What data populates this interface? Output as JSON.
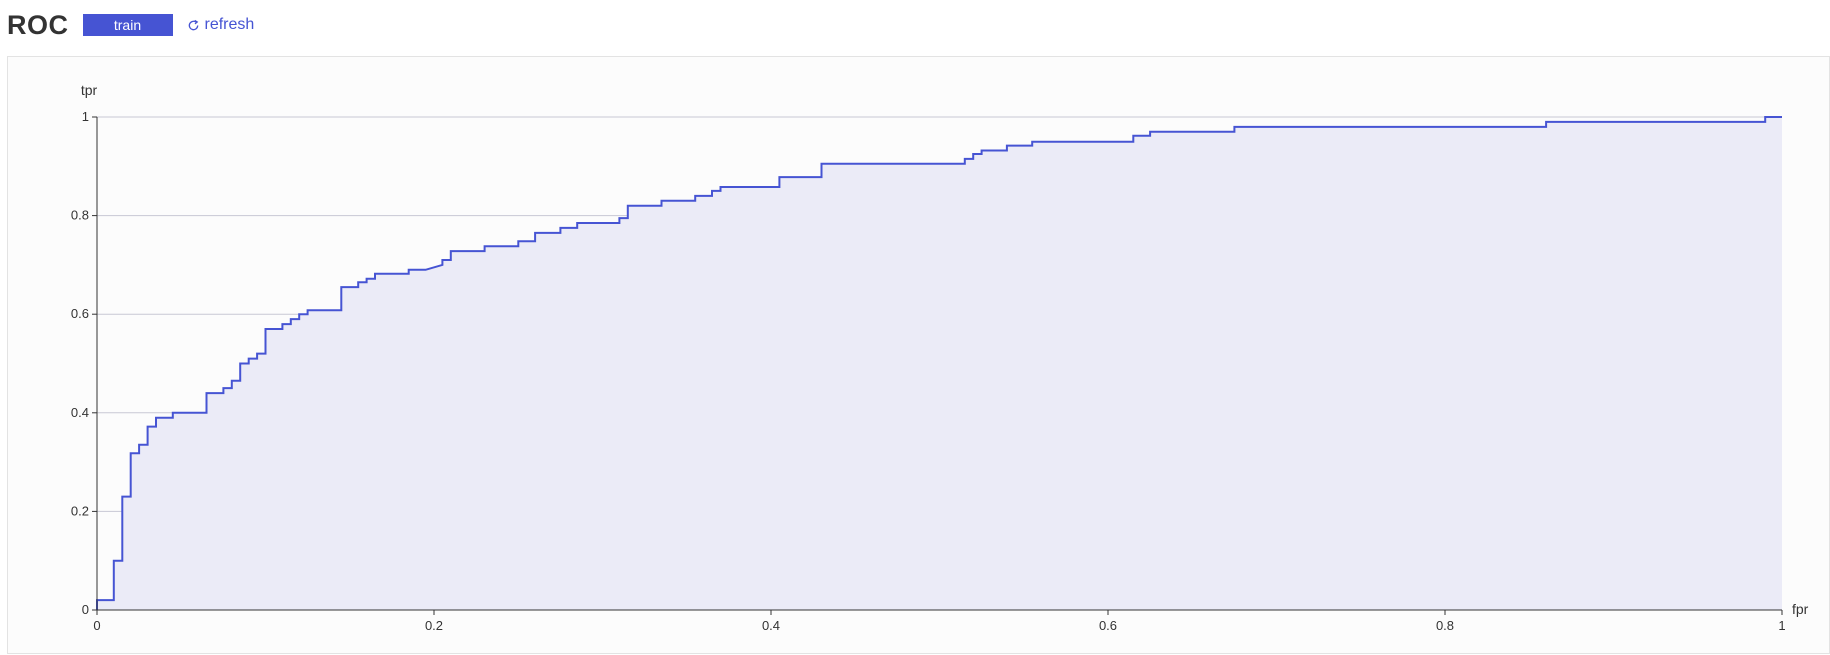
{
  "header": {
    "title": "ROC",
    "tab_label": "train",
    "refresh_label": "refresh"
  },
  "colors": {
    "accent": "#4654d3",
    "area_fill": "#ebebf7",
    "grid": "#c8c8d4"
  },
  "chart_data": {
    "type": "area",
    "title": "ROC",
    "xlabel": "fpr",
    "ylabel": "tpr",
    "xlim": [
      0,
      1
    ],
    "ylim": [
      0,
      1
    ],
    "x_ticks": [
      "0",
      "0.2",
      "0.4",
      "0.6",
      "0.8",
      "1"
    ],
    "y_ticks": [
      "0",
      "0.2",
      "0.4",
      "0.6",
      "0.8",
      "1"
    ],
    "grid": "horizontal",
    "step": true,
    "series": [
      {
        "points": [
          [
            0,
            0
          ],
          [
            0,
            0.02
          ],
          [
            0.01,
            0.02
          ],
          [
            0.01,
            0.1
          ],
          [
            0.015,
            0.1
          ],
          [
            0.015,
            0.23
          ],
          [
            0.02,
            0.23
          ],
          [
            0.02,
            0.318
          ],
          [
            0.025,
            0.318
          ],
          [
            0.025,
            0.335
          ],
          [
            0.03,
            0.335
          ],
          [
            0.03,
            0.372
          ],
          [
            0.035,
            0.372
          ],
          [
            0.035,
            0.39
          ],
          [
            0.045,
            0.39
          ],
          [
            0.045,
            0.4
          ],
          [
            0.065,
            0.4
          ],
          [
            0.065,
            0.44
          ],
          [
            0.075,
            0.44
          ],
          [
            0.075,
            0.45
          ],
          [
            0.08,
            0.45
          ],
          [
            0.08,
            0.465
          ],
          [
            0.085,
            0.465
          ],
          [
            0.085,
            0.5
          ],
          [
            0.09,
            0.5
          ],
          [
            0.09,
            0.51
          ],
          [
            0.095,
            0.51
          ],
          [
            0.095,
            0.52
          ],
          [
            0.1,
            0.52
          ],
          [
            0.1,
            0.57
          ],
          [
            0.11,
            0.57
          ],
          [
            0.11,
            0.58
          ],
          [
            0.115,
            0.58
          ],
          [
            0.115,
            0.59
          ],
          [
            0.12,
            0.59
          ],
          [
            0.12,
            0.6
          ],
          [
            0.125,
            0.6
          ],
          [
            0.125,
            0.608
          ],
          [
            0.145,
            0.608
          ],
          [
            0.145,
            0.655
          ],
          [
            0.155,
            0.655
          ],
          [
            0.155,
            0.665
          ],
          [
            0.16,
            0.665
          ],
          [
            0.16,
            0.672
          ],
          [
            0.165,
            0.672
          ],
          [
            0.165,
            0.682
          ],
          [
            0.185,
            0.682
          ],
          [
            0.185,
            0.69
          ],
          [
            0.195,
            0.69
          ],
          [
            0.205,
            0.7
          ],
          [
            0.205,
            0.71
          ],
          [
            0.21,
            0.71
          ],
          [
            0.21,
            0.728
          ],
          [
            0.23,
            0.728
          ],
          [
            0.23,
            0.738
          ],
          [
            0.25,
            0.738
          ],
          [
            0.25,
            0.748
          ],
          [
            0.26,
            0.748
          ],
          [
            0.26,
            0.765
          ],
          [
            0.275,
            0.765
          ],
          [
            0.275,
            0.775
          ],
          [
            0.285,
            0.775
          ],
          [
            0.285,
            0.785
          ],
          [
            0.31,
            0.785
          ],
          [
            0.31,
            0.795
          ],
          [
            0.315,
            0.795
          ],
          [
            0.315,
            0.82
          ],
          [
            0.335,
            0.82
          ],
          [
            0.335,
            0.83
          ],
          [
            0.355,
            0.83
          ],
          [
            0.355,
            0.84
          ],
          [
            0.365,
            0.84
          ],
          [
            0.365,
            0.85
          ],
          [
            0.37,
            0.85
          ],
          [
            0.37,
            0.858
          ],
          [
            0.405,
            0.858
          ],
          [
            0.405,
            0.878
          ],
          [
            0.43,
            0.878
          ],
          [
            0.43,
            0.905
          ],
          [
            0.515,
            0.905
          ],
          [
            0.515,
            0.915
          ],
          [
            0.52,
            0.915
          ],
          [
            0.52,
            0.925
          ],
          [
            0.525,
            0.925
          ],
          [
            0.525,
            0.932
          ],
          [
            0.54,
            0.932
          ],
          [
            0.54,
            0.942
          ],
          [
            0.555,
            0.942
          ],
          [
            0.555,
            0.95
          ],
          [
            0.615,
            0.95
          ],
          [
            0.615,
            0.962
          ],
          [
            0.625,
            0.962
          ],
          [
            0.625,
            0.97
          ],
          [
            0.675,
            0.97
          ],
          [
            0.675,
            0.98
          ],
          [
            0.86,
            0.98
          ],
          [
            0.86,
            0.99
          ],
          [
            0.99,
            0.99
          ],
          [
            0.99,
            1
          ],
          [
            1,
            1
          ]
        ]
      }
    ]
  }
}
